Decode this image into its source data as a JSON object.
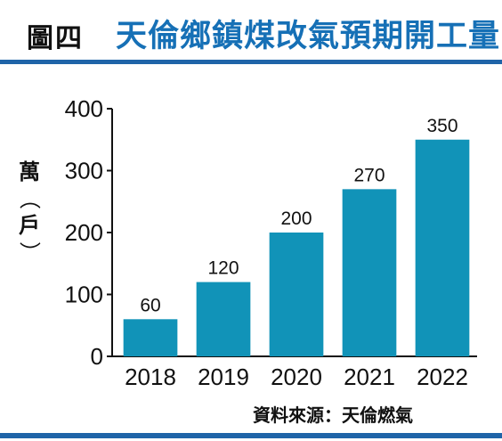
{
  "figure": {
    "label": "圖四",
    "title": "天倫鄉鎮煤改氣預期開工量"
  },
  "axis": {
    "unit": "萬",
    "unit_paren_open": "（",
    "unit_sub": "戶",
    "unit_paren_close": "）"
  },
  "source_note": "資料來源：天倫燃氣",
  "colors": {
    "bar": "#1193b8",
    "title": "#1670b6",
    "rule": "#1f64a8"
  },
  "chart_data": {
    "type": "bar",
    "title": "天倫鄉鎮煤改氣預期開工量",
    "xlabel": "",
    "ylabel": "萬（戶）",
    "categories": [
      "2018",
      "2019",
      "2020",
      "2021",
      "2022"
    ],
    "values": [
      60,
      120,
      200,
      270,
      350
    ],
    "data_labels": [
      "60",
      "120",
      "200",
      "270",
      "350"
    ],
    "yticks": [
      0,
      100,
      200,
      300,
      400
    ],
    "ytick_labels": [
      "0",
      "100",
      "200",
      "300",
      "400"
    ],
    "ylim": [
      0,
      400
    ],
    "grid": false,
    "legend": "none"
  }
}
